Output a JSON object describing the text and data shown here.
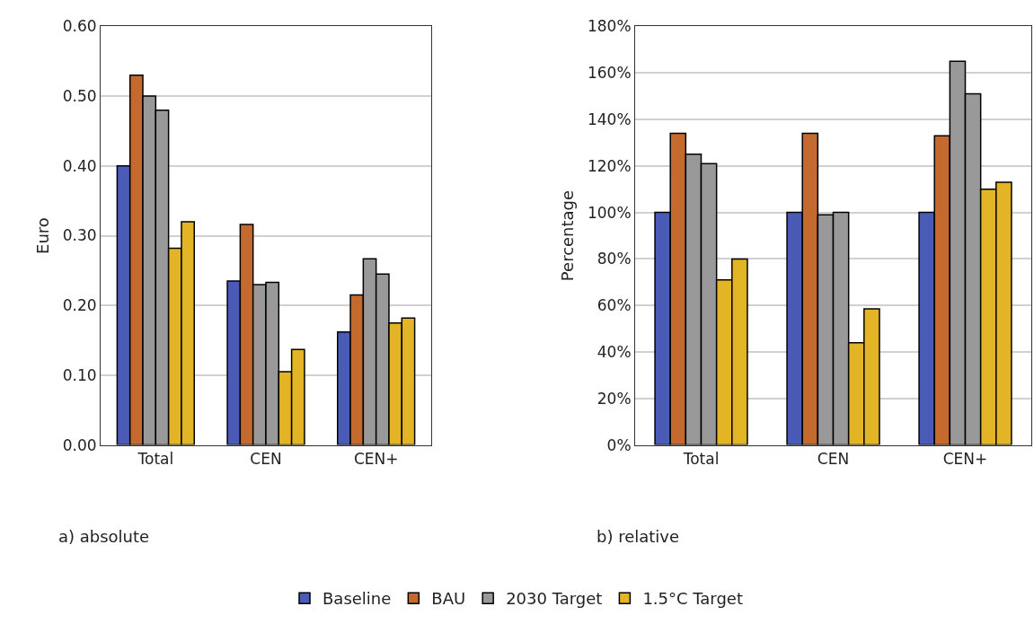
{
  "chart_data": [
    {
      "type": "bar",
      "ylabel": "Euro",
      "categories": [
        "Total",
        "CEN",
        "CEN+"
      ],
      "ylim": [
        0,
        0.6
      ],
      "yticks": [
        {
          "value": 0,
          "label": "0.00"
        },
        {
          "value": 0.1,
          "label": "0.10"
        },
        {
          "value": 0.2,
          "label": "0.20"
        },
        {
          "value": 0.3,
          "label": "0.30"
        },
        {
          "value": 0.4,
          "label": "0.40"
        },
        {
          "value": 0.5,
          "label": "0.50"
        },
        {
          "value": 0.6,
          "label": "0.60"
        }
      ],
      "grid": "y",
      "legend": "bottom",
      "annotations": [
        "a) absolute"
      ],
      "series": [
        {
          "name": "Baseline",
          "color": "#4a5bb5",
          "values": [
            0.4,
            0.235,
            0.162
          ]
        },
        {
          "name": "BAU",
          "color": "#c46a2e",
          "values": [
            0.53,
            0.316,
            0.215
          ]
        },
        {
          "name": "2030 Target",
          "color": "#999999",
          "values": [
            0.5,
            0.23,
            0.267
          ]
        },
        {
          "color": "#999999",
          "values": [
            0.48,
            0.233,
            0.245
          ]
        },
        {
          "name": "1.5°C Target",
          "color": "#e3b526",
          "values": [
            0.282,
            0.105,
            0.175
          ]
        },
        {
          "color": "#e3b526",
          "values": [
            0.32,
            0.137,
            0.182
          ]
        }
      ]
    },
    {
      "type": "bar",
      "ylabel": "Percentage",
      "categories": [
        "Total",
        "CEN",
        "CEN+"
      ],
      "ylim": [
        0,
        180
      ],
      "yticks": [
        {
          "value": 0,
          "label": "0%"
        },
        {
          "value": 20,
          "label": "20%"
        },
        {
          "value": 40,
          "label": "40%"
        },
        {
          "value": 60,
          "label": "60%"
        },
        {
          "value": 80,
          "label": "80%"
        },
        {
          "value": 100,
          "label": "100%"
        },
        {
          "value": 120,
          "label": "120%"
        },
        {
          "value": 140,
          "label": "140%"
        },
        {
          "value": 160,
          "label": "160%"
        },
        {
          "value": 180,
          "label": "180%"
        }
      ],
      "grid": "y",
      "legend": "bottom",
      "annotations": [
        "b) relative"
      ],
      "series": [
        {
          "name": "Baseline",
          "color": "#4a5bb5",
          "values": [
            100,
            100,
            100
          ]
        },
        {
          "name": "BAU",
          "color": "#c46a2e",
          "values": [
            134,
            134,
            133
          ]
        },
        {
          "name": "2030 Target",
          "color": "#999999",
          "values": [
            125,
            99,
            165
          ]
        },
        {
          "color": "#999999",
          "values": [
            121,
            100,
            151
          ]
        },
        {
          "name": "1.5°C Target",
          "color": "#e3b526",
          "values": [
            71,
            44,
            110
          ]
        },
        {
          "color": "#e3b526",
          "values": [
            80,
            58.5,
            113
          ]
        }
      ]
    }
  ]
}
